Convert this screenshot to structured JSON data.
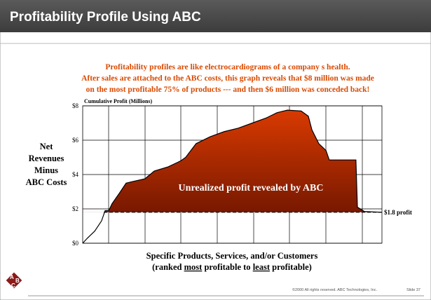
{
  "title": "Profitability Profile Using ABC",
  "subtitle": [
    "Profitability profiles are like electrocardiograms of a company s health.",
    "After sales are attached to the ABC costs, this graph reveals that $8 million was made",
    "on the most profitable 75% of products --- and then $6 million was conceded back!"
  ],
  "chart_data": {
    "type": "line",
    "ylabel": [
      "Net",
      "Revenues",
      "Minus",
      "ABC Costs"
    ],
    "axis_title": "Cumulative Profit (Millions)",
    "xlabel": "Specific Products, Services, and/or Customers",
    "xlabel_parts": [
      "(ranked ",
      "most",
      " profitable to ",
      "least",
      " profitable)"
    ],
    "annotation": "Unrealized profit revealed by ABC",
    "reference": {
      "value": 1.8,
      "label": "$1.8 profit"
    },
    "xlim": [
      0,
      100
    ],
    "ylim": [
      0,
      8
    ],
    "yticks": [
      {
        "value": 0,
        "label": "$0"
      },
      {
        "value": 2,
        "label": "$2"
      },
      {
        "value": 4,
        "label": "$4"
      },
      {
        "value": 6,
        "label": "$6"
      },
      {
        "value": 8,
        "label": "$8"
      }
    ],
    "grid": true,
    "series": [
      {
        "color": "#000000",
        "fill_top": "#d93a00",
        "fill_bottom": "#5a0e00",
        "x": [
          0,
          1.6,
          4,
          6.3,
          7.5,
          8.7,
          9.8,
          12.2,
          14.5,
          16.9,
          20.8,
          23.9,
          28.6,
          32.8,
          34.4,
          37.9,
          42.6,
          47.3,
          52,
          56.7,
          61.4,
          64.9,
          68.4,
          73,
          75.4,
          76.6,
          78.9,
          81.3,
          82.4,
          91.3,
          91.8,
          94.1,
          100
        ],
        "values": [
          0,
          0.3,
          0.7,
          1.3,
          1.9,
          1.9,
          2.3,
          2.9,
          3.5,
          3.6,
          3.75,
          4.2,
          4.45,
          4.8,
          5.0,
          5.8,
          6.2,
          6.5,
          6.7,
          7.0,
          7.3,
          7.6,
          7.75,
          7.7,
          7.4,
          6.6,
          5.8,
          5.4,
          4.85,
          4.85,
          2.1,
          1.85,
          1.8
        ]
      }
    ]
  },
  "logo": [
    "A",
    "B",
    "C"
  ],
  "footer": "©2000 All rights reserved. ABC Technologies, Inc.",
  "slide": "Slide 37"
}
